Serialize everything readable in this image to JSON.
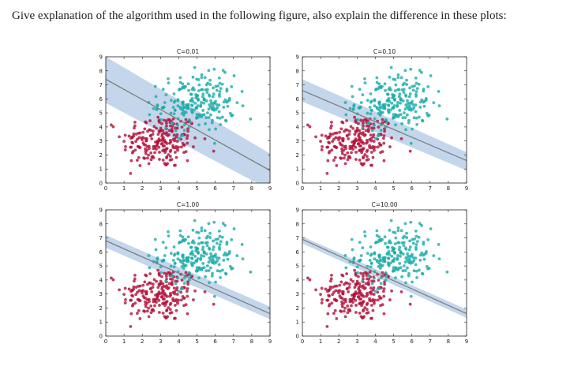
{
  "question": "Give explanation of the algorithm used in the following figure, also explain the difference in these plots:",
  "colors": {
    "class_a": "#b0103a",
    "class_b": "#1aaba8",
    "margin_band": "#b8cfe8",
    "boundary": "#7f7f7f"
  },
  "chart_data": [
    {
      "type": "scatter",
      "title": "C=0.01",
      "xlim": [
        0,
        9
      ],
      "ylim": [
        0,
        9
      ],
      "x_ticks": [
        "0",
        "1",
        "2",
        "3",
        "4",
        "5",
        "6",
        "7",
        "8",
        "9"
      ],
      "y_ticks": [
        "0",
        "1",
        "2",
        "3",
        "4",
        "5",
        "6",
        "7",
        "8",
        "9"
      ],
      "series": [
        {
          "color": "#b0103a",
          "center": [
            3.0,
            3.0
          ]
        },
        {
          "color": "#1aaba8",
          "center": [
            5.0,
            5.7
          ]
        }
      ],
      "decision_line": [
        [
          0,
          7.4
        ],
        [
          9,
          0.9
        ]
      ],
      "margin_upper": [
        [
          0,
          9.0
        ],
        [
          9,
          2.1
        ]
      ],
      "margin_lower": [
        [
          0,
          5.7
        ],
        [
          9,
          -0.5
        ]
      ]
    },
    {
      "type": "scatter",
      "title": "C=0.10",
      "xlim": [
        0,
        9
      ],
      "ylim": [
        0,
        9
      ],
      "x_ticks": [
        "0",
        "1",
        "2",
        "3",
        "4",
        "5",
        "6",
        "7",
        "8",
        "9"
      ],
      "y_ticks": [
        "0",
        "1",
        "2",
        "3",
        "4",
        "5",
        "6",
        "7",
        "8",
        "9"
      ],
      "series": [
        {
          "color": "#b0103a",
          "center": [
            3.0,
            3.0
          ]
        },
        {
          "color": "#1aaba8",
          "center": [
            5.0,
            5.7
          ]
        }
      ],
      "decision_line": [
        [
          0,
          6.6
        ],
        [
          9,
          1.6
        ]
      ],
      "margin_upper": [
        [
          0,
          7.4
        ],
        [
          9,
          2.2
        ]
      ],
      "margin_lower": [
        [
          0,
          5.8
        ],
        [
          9,
          0.9
        ]
      ]
    },
    {
      "type": "scatter",
      "title": "C=1.00",
      "xlim": [
        0,
        9
      ],
      "ylim": [
        0,
        9
      ],
      "x_ticks": [
        "0",
        "1",
        "2",
        "3",
        "4",
        "5",
        "6",
        "7",
        "8",
        "9"
      ],
      "y_ticks": [
        "0",
        "1",
        "2",
        "3",
        "4",
        "5",
        "6",
        "7",
        "8",
        "9"
      ],
      "series": [
        {
          "color": "#b0103a",
          "center": [
            3.0,
            3.0
          ]
        },
        {
          "color": "#1aaba8",
          "center": [
            5.0,
            5.7
          ]
        }
      ],
      "decision_line": [
        [
          0,
          6.8
        ],
        [
          9,
          1.6
        ]
      ],
      "margin_upper": [
        [
          0,
          7.2
        ],
        [
          9,
          2.1
        ]
      ],
      "margin_lower": [
        [
          0,
          6.3
        ],
        [
          9,
          1.2
        ]
      ]
    },
    {
      "type": "scatter",
      "title": "C=10.00",
      "xlim": [
        0,
        9
      ],
      "ylim": [
        0,
        9
      ],
      "x_ticks": [
        "0",
        "1",
        "2",
        "3",
        "4",
        "5",
        "6",
        "7",
        "8",
        "9"
      ],
      "y_ticks": [
        "0",
        "1",
        "2",
        "3",
        "4",
        "5",
        "6",
        "7",
        "8",
        "9"
      ],
      "series": [
        {
          "color": "#b0103a",
          "center": [
            3.0,
            3.0
          ]
        },
        {
          "color": "#1aaba8",
          "center": [
            5.0,
            5.7
          ]
        }
      ],
      "decision_line": [
        [
          0,
          6.9
        ],
        [
          9,
          1.6
        ]
      ],
      "margin_upper": [
        [
          0,
          7.1
        ],
        [
          9,
          1.9
        ]
      ],
      "margin_lower": [
        [
          0,
          6.6
        ],
        [
          9,
          1.3
        ]
      ]
    }
  ]
}
